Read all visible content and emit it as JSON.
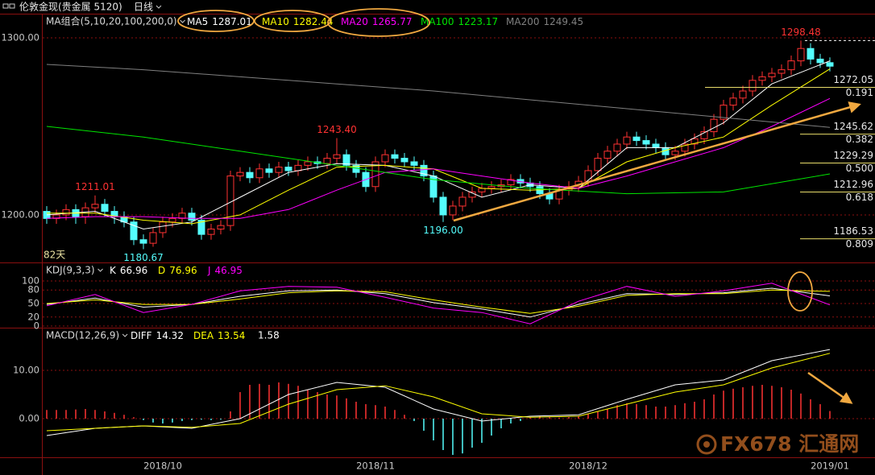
{
  "header": {
    "symbol": "伦敦金现(贵金属 5120)",
    "period": "日线"
  },
  "watermark": "FX678 汇通网",
  "chart_data": [
    {
      "type": "candlestick",
      "title": "MA组合(5,10,20,100,200,0)",
      "count_label": "82天",
      "categories": [
        null,
        null,
        null,
        null,
        null,
        null,
        null,
        null,
        null,
        null,
        null,
        null,
        "2018/10",
        null,
        null,
        null,
        null,
        null,
        null,
        null,
        null,
        null,
        null,
        null,
        null,
        null,
        null,
        null,
        null,
        null,
        null,
        null,
        null,
        null,
        "2018/11",
        null,
        null,
        null,
        null,
        null,
        null,
        null,
        null,
        null,
        null,
        null,
        null,
        null,
        null,
        null,
        null,
        null,
        null,
        null,
        null,
        null,
        "2018/12",
        null,
        null,
        null,
        null,
        null,
        null,
        null,
        null,
        null,
        null,
        null,
        null,
        null,
        null,
        null,
        null,
        null,
        null,
        null,
        null,
        null,
        null,
        null,
        null,
        "2019/01"
      ],
      "open": [
        1202,
        1198,
        1200,
        1203,
        1199,
        1204,
        1206,
        1202,
        1199,
        1196,
        1186,
        1184,
        1190,
        1196,
        1198,
        1201,
        1197,
        1189,
        1192,
        1194,
        1222,
        1224,
        1221,
        1226,
        1224,
        1227,
        1225,
        1228,
        1230,
        1229,
        1232,
        1234,
        1228,
        1224,
        1216,
        1230,
        1234,
        1232,
        1230,
        1228,
        1222,
        1210,
        1200,
        1205,
        1210,
        1213,
        1215,
        1216,
        1217,
        1220,
        1218,
        1216,
        1212,
        1209,
        1214,
        1216,
        1219,
        1225,
        1232,
        1236,
        1240,
        1244,
        1242,
        1240,
        1238,
        1234,
        1236,
        1240,
        1243,
        1247,
        1254,
        1262,
        1266,
        1270,
        1276,
        1278,
        1280,
        1282,
        1287,
        1294,
        1288,
        1286
      ],
      "high": [
        1205,
        1203,
        1206,
        1206,
        1207,
        1211.01,
        1209,
        1205,
        1202,
        1199,
        1189,
        1193,
        1199,
        1201,
        1204,
        1204,
        1200,
        1195,
        1197,
        1225,
        1227,
        1227,
        1229,
        1229,
        1230,
        1230,
        1231,
        1233,
        1233,
        1235,
        1243.4,
        1237,
        1231,
        1227,
        1233,
        1237,
        1237,
        1235,
        1233,
        1231,
        1225,
        1213,
        1208,
        1213,
        1216,
        1218,
        1219,
        1220,
        1223,
        1223,
        1221,
        1219,
        1215,
        1217,
        1219,
        1222,
        1228,
        1235,
        1239,
        1243,
        1247,
        1247,
        1245,
        1243,
        1241,
        1239,
        1243,
        1246,
        1250,
        1257,
        1265,
        1269,
        1273,
        1279,
        1281,
        1283,
        1285,
        1290,
        1298.48,
        1297,
        1291,
        1289
      ],
      "low": [
        1195,
        1195,
        1197,
        1195,
        1195,
        1201,
        1199,
        1195,
        1193,
        1183,
        1180.67,
        1182,
        1187,
        1193,
        1195,
        1194,
        1186,
        1186,
        1189,
        1191,
        1219,
        1218,
        1218,
        1221,
        1221,
        1222,
        1222,
        1225,
        1226,
        1226,
        1229,
        1225,
        1221,
        1213,
        1213,
        1227,
        1229,
        1227,
        1225,
        1219,
        1207,
        1196,
        1197,
        1202,
        1207,
        1210,
        1212,
        1213,
        1214,
        1215,
        1213,
        1209,
        1206,
        1206,
        1211,
        1213,
        1216,
        1222,
        1229,
        1233,
        1237,
        1239,
        1237,
        1235,
        1231,
        1231,
        1233,
        1237,
        1240,
        1244,
        1251,
        1259,
        1263,
        1267,
        1273,
        1275,
        1277,
        1279,
        1284,
        1285,
        1283,
        1281
      ],
      "close": [
        1198,
        1200,
        1203,
        1199,
        1204,
        1206,
        1202,
        1199,
        1196,
        1186,
        1184,
        1190,
        1196,
        1198,
        1201,
        1197,
        1189,
        1192,
        1194,
        1222,
        1224,
        1221,
        1226,
        1224,
        1227,
        1225,
        1228,
        1230,
        1229,
        1232,
        1234,
        1228,
        1224,
        1216,
        1230,
        1234,
        1232,
        1230,
        1228,
        1222,
        1210,
        1200,
        1205,
        1210,
        1213,
        1215,
        1216,
        1217,
        1220,
        1218,
        1216,
        1212,
        1209,
        1214,
        1216,
        1219,
        1225,
        1232,
        1236,
        1240,
        1244,
        1242,
        1240,
        1238,
        1234,
        1236,
        1240,
        1243,
        1247,
        1254,
        1262,
        1266,
        1270,
        1276,
        1278,
        1280,
        1282,
        1287,
        1294,
        1288,
        1286,
        1284
      ],
      "up_color": "#ff3232",
      "down_color": "#54fcfc",
      "series": [
        {
          "name": "MA5",
          "color": "#ffffff",
          "x": [
            0,
            5,
            10,
            15,
            20,
            25,
            30,
            35,
            40,
            45,
            50,
            55,
            60,
            65,
            70,
            75,
            81
          ],
          "values": [
            1200,
            1202,
            1192,
            1196,
            1210,
            1224,
            1229,
            1228,
            1222,
            1210,
            1217,
            1215,
            1238,
            1238,
            1252,
            1274,
            1287.01
          ]
        },
        {
          "name": "MA10",
          "color": "#ffff00",
          "x": [
            0,
            5,
            10,
            15,
            20,
            25,
            30,
            35,
            40,
            45,
            50,
            55,
            60,
            65,
            70,
            75,
            81
          ],
          "values": [
            1201,
            1201,
            1197,
            1195,
            1200,
            1214,
            1227,
            1228,
            1226,
            1215,
            1214,
            1215,
            1230,
            1238,
            1244,
            1262,
            1282.44
          ]
        },
        {
          "name": "MA20",
          "color": "#ff00ff",
          "x": [
            0,
            5,
            10,
            15,
            20,
            25,
            30,
            35,
            40,
            45,
            50,
            55,
            60,
            65,
            70,
            75,
            81
          ],
          "values": [
            1198,
            1199,
            1199,
            1198,
            1198,
            1203,
            1214,
            1224,
            1226,
            1222,
            1218,
            1215,
            1222,
            1230,
            1238,
            1250,
            1265.77
          ]
        },
        {
          "name": "MA100",
          "color": "#00e600",
          "x": [
            0,
            10,
            20,
            30,
            40,
            50,
            60,
            70,
            81
          ],
          "values": [
            1250,
            1244,
            1236,
            1228,
            1220,
            1215,
            1212,
            1213,
            1223.17
          ]
        },
        {
          "name": "MA200",
          "color": "#808080",
          "x": [
            0,
            10,
            20,
            30,
            40,
            50,
            60,
            70,
            81
          ],
          "values": [
            1285,
            1282,
            1278,
            1274,
            1270,
            1265,
            1260,
            1255,
            1249.45
          ]
        }
      ],
      "annotations": [
        {
          "value": 1211.01,
          "label": "1211.01",
          "color": "#ff3232"
        },
        {
          "value": 1180.67,
          "label": "1180.67",
          "color": "#54fcfc"
        },
        {
          "value": 1243.4,
          "label": "1243.40",
          "color": "#ff3232"
        },
        {
          "value": 1196,
          "label": "1196.00",
          "color": "#54fcfc"
        },
        {
          "value": 1298.48,
          "label": "1298.48",
          "color": "#ff3232",
          "dashed_line": true
        }
      ],
      "fib_color": "#e8dc6a",
      "fib_levels": [
        {
          "price": 1272.05,
          "ratio": 0.191
        },
        {
          "price": 1245.62,
          "ratio": 0.382
        },
        {
          "price": 1229.29,
          "ratio": {
            "value": 0.5,
            "label": "0.500"
          }
        },
        {
          "price": 1212.96,
          "ratio": 0.618
        },
        {
          "price": 1186.53,
          "ratio": 0.809
        }
      ],
      "ylim": [
        1173.6,
        1313.2
      ],
      "yticks": [
        {
          "value": 1200,
          "label": "1200.00"
        },
        {
          "value": 1300,
          "label": "1300.00"
        }
      ],
      "grid": true
    },
    {
      "type": "line",
      "title": "KDJ(9,3,3)",
      "series": [
        {
          "name": "K",
          "color": "#ffffff",
          "x": [
            0,
            5,
            10,
            15,
            20,
            25,
            30,
            35,
            40,
            45,
            50,
            55,
            60,
            65,
            70,
            75,
            81
          ],
          "values": [
            48,
            62,
            42,
            48,
            66,
            78,
            80,
            72,
            52,
            38,
            20,
            48,
            72,
            70,
            74,
            84,
            66.96
          ]
        },
        {
          "name": "D",
          "color": "#ffff00",
          "x": [
            0,
            5,
            10,
            15,
            20,
            25,
            30,
            35,
            40,
            45,
            50,
            55,
            60,
            65,
            70,
            75,
            81
          ],
          "values": [
            50,
            58,
            48,
            48,
            60,
            74,
            78,
            76,
            58,
            42,
            28,
            44,
            68,
            72,
            72,
            80,
            76.96
          ]
        },
        {
          "name": "J",
          "color": "#ff00ff",
          "x": [
            0,
            5,
            10,
            15,
            20,
            25,
            30,
            35,
            40,
            45,
            50,
            55,
            60,
            65,
            70,
            75,
            81
          ],
          "values": [
            45,
            70,
            30,
            48,
            78,
            88,
            86,
            64,
            40,
            30,
            5,
            55,
            88,
            66,
            78,
            95,
            46.95
          ]
        }
      ],
      "ylim": [
        -3.6,
        139.3
      ],
      "yticks": [
        0,
        20,
        50,
        80,
        100
      ],
      "grid": true
    },
    {
      "type": "macd",
      "title": "MACD(12,26,9)",
      "histogram": {
        "up_color": "#ff3232",
        "down_color": "#54fcfc",
        "values": [
          1.8,
          1.8,
          1.8,
          1.9,
          2.0,
          1.8,
          1.5,
          1.2,
          0.8,
          0.3,
          -0.3,
          -0.8,
          -1.0,
          -0.8,
          -0.5,
          -0.3,
          -0.2,
          -0.3,
          -0.2,
          1.5,
          5.5,
          7.0,
          7.2,
          7.0,
          7.5,
          7.2,
          6.8,
          6.0,
          5.5,
          5.0,
          4.8,
          4.2,
          3.5,
          3.0,
          2.8,
          2.5,
          1.8,
          0.8,
          -0.5,
          -2.5,
          -4.5,
          -6.5,
          -7.5,
          -7.2,
          -6.0,
          -5.0,
          -3.5,
          -2.0,
          -1.0,
          -0.5,
          0.2,
          0.5,
          0.3,
          0.2,
          0.3,
          0.5,
          1.0,
          1.5,
          2.0,
          2.8,
          3.2,
          3.0,
          2.8,
          2.5,
          2.5,
          2.8,
          3.2,
          3.5,
          4.0,
          5.0,
          5.8,
          6.2,
          6.5,
          6.8,
          7.0,
          6.8,
          6.5,
          6.0,
          5.2,
          4.0,
          3.0,
          1.58
        ]
      },
      "series": [
        {
          "name": "DIFF",
          "color": "#ffffff",
          "x": [
            0,
            5,
            10,
            15,
            20,
            25,
            30,
            35,
            40,
            45,
            50,
            55,
            60,
            65,
            70,
            75,
            81
          ],
          "values": [
            -3.5,
            -2,
            -1.5,
            -2,
            0,
            5,
            7.5,
            6.5,
            2,
            -0.5,
            0.5,
            0.8,
            4,
            7,
            8,
            12,
            14.32
          ]
        },
        {
          "name": "DEA",
          "color": "#ffff00",
          "x": [
            0,
            5,
            10,
            15,
            20,
            25,
            30,
            35,
            40,
            45,
            50,
            55,
            60,
            65,
            70,
            75,
            81
          ],
          "values": [
            -2.5,
            -2,
            -1.5,
            -1.8,
            -1,
            3,
            6,
            6.8,
            4.5,
            1,
            0.3,
            0.5,
            3,
            5.5,
            7,
            10.5,
            13.54
          ]
        }
      ],
      "ylim": [
        -8,
        18.67
      ],
      "yticks": [
        {
          "value": 0,
          "label": "0.00"
        },
        {
          "value": 10,
          "label": "10.00"
        }
      ],
      "grid": true
    }
  ]
}
